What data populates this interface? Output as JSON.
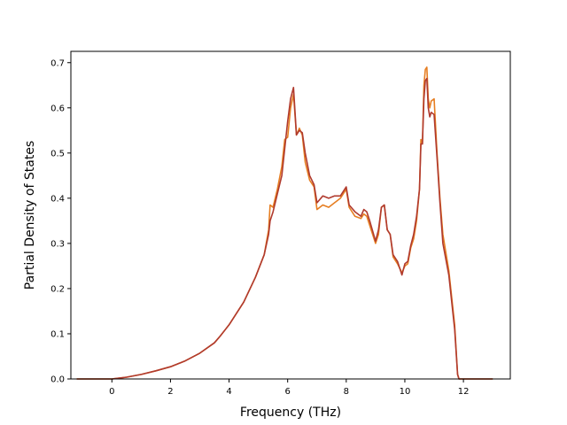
{
  "chart_data": {
    "type": "line",
    "xlabel": "Frequency (THz)",
    "ylabel": "Partial Density of States",
    "xlim": [
      -1.4,
      13.6
    ],
    "ylim": [
      0.0,
      0.725
    ],
    "xticks": [
      0,
      2,
      4,
      6,
      8,
      10,
      12
    ],
    "yticks": [
      0.0,
      0.1,
      0.2,
      0.3,
      0.4,
      0.5,
      0.6,
      0.7
    ],
    "grid": false,
    "legend": "none",
    "series": [
      {
        "color": "#e67e22",
        "x": [
          -1.2,
          -0.5,
          0,
          0.5,
          1,
          1.5,
          2,
          2.5,
          3,
          3.5,
          3.7,
          4,
          4.5,
          4.9,
          5.2,
          5.35,
          5.4,
          5.5,
          5.65,
          5.8,
          5.9,
          6.0,
          6.1,
          6.2,
          6.3,
          6.4,
          6.5,
          6.6,
          6.75,
          6.9,
          7.0,
          7.2,
          7.4,
          7.6,
          7.8,
          7.9,
          8.0,
          8.1,
          8.3,
          8.5,
          8.6,
          8.7,
          8.8,
          9.0,
          9.1,
          9.2,
          9.3,
          9.4,
          9.5,
          9.6,
          9.75,
          9.9,
          10.0,
          10.1,
          10.2,
          10.3,
          10.4,
          10.5,
          10.55,
          10.6,
          10.65,
          10.7,
          10.75,
          10.8,
          10.85,
          10.9,
          11.0,
          11.1,
          11.2,
          11.3,
          11.5,
          11.7,
          11.8,
          11.85,
          11.9,
          12.5,
          13.0
        ],
        "values": [
          0.0,
          0.0,
          0.0,
          0.004,
          0.01,
          0.018,
          0.027,
          0.04,
          0.057,
          0.08,
          0.095,
          0.12,
          0.17,
          0.225,
          0.275,
          0.33,
          0.385,
          0.38,
          0.42,
          0.47,
          0.53,
          0.535,
          0.6,
          0.63,
          0.54,
          0.555,
          0.54,
          0.48,
          0.44,
          0.425,
          0.375,
          0.385,
          0.38,
          0.39,
          0.4,
          0.41,
          0.42,
          0.38,
          0.36,
          0.355,
          0.365,
          0.36,
          0.34,
          0.3,
          0.32,
          0.38,
          0.385,
          0.33,
          0.32,
          0.27,
          0.255,
          0.235,
          0.25,
          0.255,
          0.29,
          0.31,
          0.35,
          0.42,
          0.53,
          0.52,
          0.65,
          0.685,
          0.69,
          0.62,
          0.6,
          0.615,
          0.62,
          0.5,
          0.4,
          0.32,
          0.24,
          0.12,
          0.01,
          0.0,
          0.0,
          0.0,
          0.0
        ]
      },
      {
        "color": "#b03a2e",
        "x": [
          -1.2,
          -0.5,
          0,
          0.5,
          1,
          1.5,
          2,
          2.5,
          3,
          3.5,
          3.7,
          4,
          4.5,
          4.9,
          5.2,
          5.35,
          5.4,
          5.5,
          5.65,
          5.8,
          5.9,
          6.0,
          6.1,
          6.2,
          6.3,
          6.4,
          6.5,
          6.6,
          6.75,
          6.9,
          7.0,
          7.2,
          7.4,
          7.6,
          7.8,
          7.9,
          8.0,
          8.1,
          8.3,
          8.5,
          8.6,
          8.7,
          8.8,
          9.0,
          9.1,
          9.2,
          9.3,
          9.4,
          9.5,
          9.6,
          9.75,
          9.9,
          10.0,
          10.1,
          10.2,
          10.3,
          10.4,
          10.5,
          10.55,
          10.6,
          10.65,
          10.7,
          10.75,
          10.8,
          10.85,
          10.9,
          11.0,
          11.1,
          11.2,
          11.3,
          11.5,
          11.7,
          11.8,
          11.85,
          11.9,
          12.5,
          13.0
        ],
        "values": [
          0.0,
          0.0,
          0.0,
          0.004,
          0.01,
          0.018,
          0.027,
          0.04,
          0.057,
          0.08,
          0.095,
          0.12,
          0.17,
          0.225,
          0.275,
          0.32,
          0.35,
          0.37,
          0.41,
          0.45,
          0.51,
          0.57,
          0.62,
          0.645,
          0.54,
          0.55,
          0.545,
          0.5,
          0.45,
          0.43,
          0.39,
          0.405,
          0.4,
          0.405,
          0.405,
          0.415,
          0.425,
          0.385,
          0.37,
          0.36,
          0.375,
          0.37,
          0.35,
          0.305,
          0.33,
          0.38,
          0.385,
          0.33,
          0.32,
          0.275,
          0.26,
          0.23,
          0.255,
          0.26,
          0.295,
          0.32,
          0.36,
          0.42,
          0.52,
          0.52,
          0.62,
          0.66,
          0.665,
          0.6,
          0.58,
          0.59,
          0.585,
          0.49,
          0.39,
          0.3,
          0.23,
          0.11,
          0.01,
          0.0,
          0.0,
          0.0,
          0.0
        ]
      }
    ]
  }
}
